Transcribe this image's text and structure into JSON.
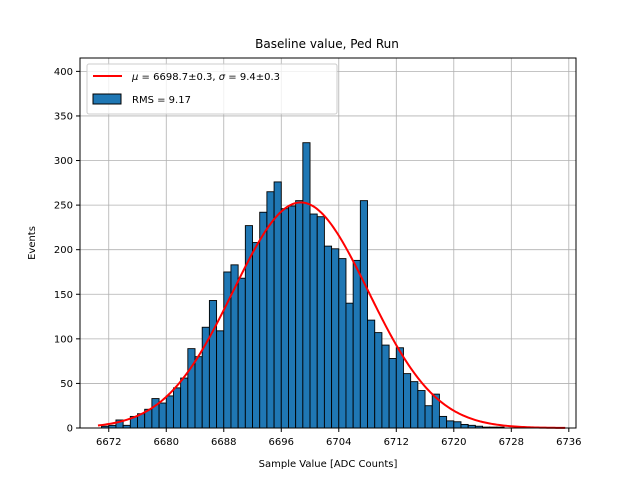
{
  "chart_data": {
    "type": "bar",
    "title": "Baseline value, Ped Run",
    "xlabel": "Sample Value [ADC Counts]",
    "ylabel": "Events",
    "xlim": [
      6668,
      6737
    ],
    "ylim": [
      0,
      415
    ],
    "xticks": [
      6672,
      6680,
      6688,
      6696,
      6704,
      6712,
      6720,
      6728,
      6736
    ],
    "yticks": [
      0,
      50,
      100,
      150,
      200,
      250,
      300,
      350,
      400
    ],
    "grid": true,
    "legend_position": "top-left",
    "histogram": {
      "name": "RMS = 9.17",
      "color": "#1f77b4",
      "edgecolor": "#000000",
      "bin_start": 6671,
      "bin_width": 1,
      "counts": [
        2,
        3,
        9,
        3,
        13,
        16,
        21,
        33,
        28,
        36,
        45,
        56,
        89,
        80,
        113,
        143,
        109,
        175,
        183,
        168,
        227,
        208,
        242,
        265,
        276,
        246,
        249,
        255,
        320,
        240,
        237,
        204,
        201,
        190,
        140,
        188,
        255,
        121,
        107,
        93,
        78,
        90,
        61,
        52,
        42,
        25,
        38,
        13,
        8,
        7,
        4,
        3,
        2,
        1,
        1,
        1,
        0,
        0,
        0,
        0,
        0,
        0,
        0,
        0
      ]
    },
    "fit": {
      "name_parts": [
        "μ",
        " = 6698.7±0.3, ",
        "σ",
        " = 9.4±0.3"
      ],
      "color": "#ff0000",
      "mu": 6698.7,
      "sigma": 9.4,
      "amplitude": 253,
      "x_range": [
        6670.5,
        6735.5
      ]
    }
  }
}
